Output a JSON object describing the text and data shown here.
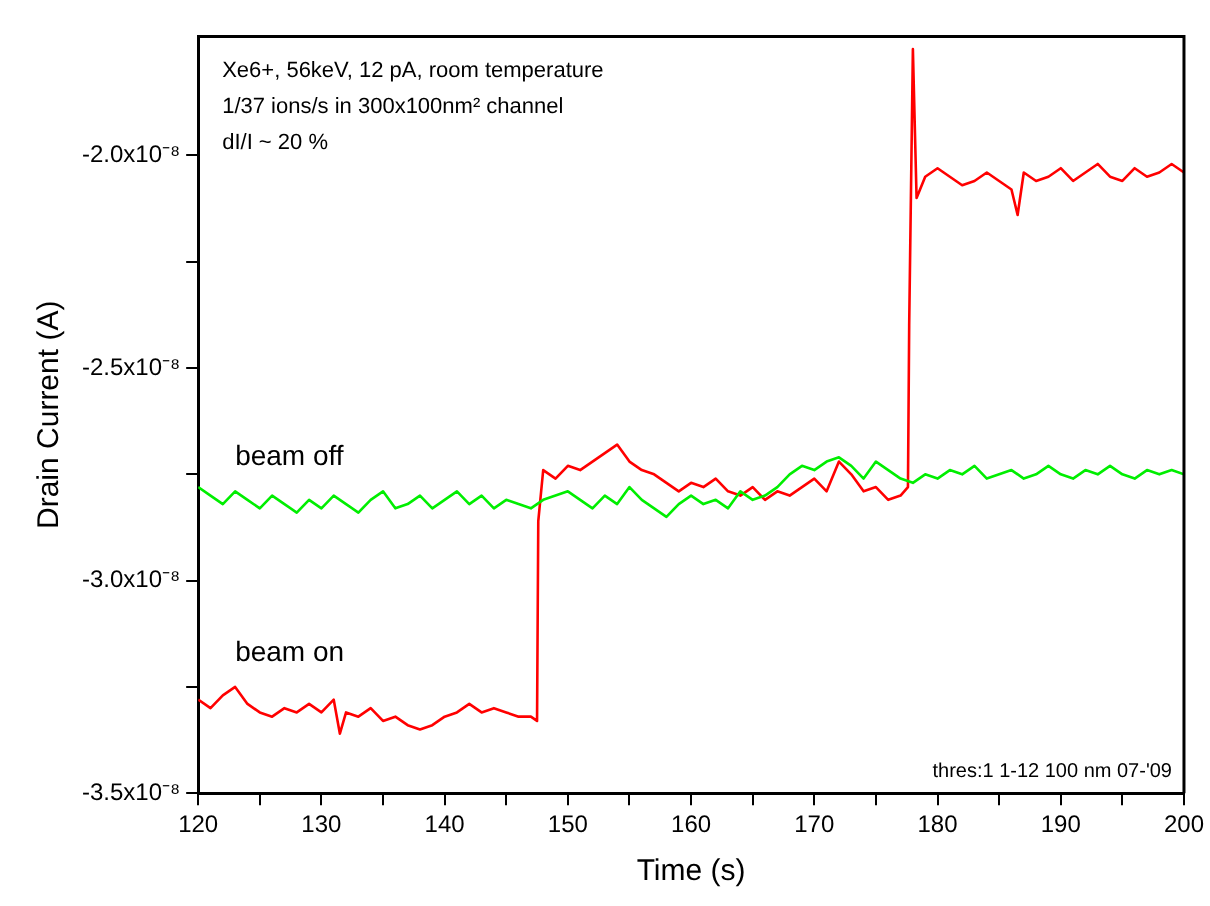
{
  "chart_data": {
    "type": "line",
    "xlabel": "Time (s)",
    "ylabel": "Drain Current (A)",
    "xlim": [
      120,
      200
    ],
    "xticks": [
      120,
      {
        "value": 125,
        "label": null
      },
      130,
      {
        "value": 135,
        "label": null
      },
      140,
      {
        "value": 145,
        "label": null
      },
      150,
      {
        "value": 155,
        "label": null
      },
      160,
      {
        "value": 165,
        "label": null
      },
      170,
      {
        "value": 175,
        "label": null
      },
      180,
      {
        "value": 185,
        "label": null
      },
      190,
      {
        "value": 195,
        "label": null
      },
      200
    ],
    "ylim": [
      -3.5e-08,
      -1.72e-08
    ],
    "yticks": [
      {
        "value": -3.5e-08,
        "label": "-3.5x10⁻⁸"
      },
      {
        "value": -3.25e-08,
        "label": null
      },
      {
        "value": -3e-08,
        "label": "-3.0x10⁻⁸"
      },
      {
        "value": -2.75e-08,
        "label": null
      },
      {
        "value": -2.5e-08,
        "label": "-2.5x10⁻⁸"
      },
      {
        "value": -2.25e-08,
        "label": null
      },
      {
        "value": -2e-08,
        "label": "-2.0x10⁻⁸"
      }
    ],
    "grid": false,
    "legend": false,
    "marker": "none",
    "line_style": "solid",
    "annotations": [
      "Xe6+, 56keV, 12 pA, room temperature",
      "1/37 ions/s in 300x100nm² channel",
      "dI/I ~ 20 %",
      "thres:1 1-12 100 nm 07-'09"
    ],
    "series": [
      {
        "name": "beam off",
        "color": "#00ee00",
        "x": [
          120,
          121,
          122,
          123,
          124,
          125,
          126,
          127,
          128,
          129,
          130,
          131,
          132,
          133,
          134,
          135,
          136,
          137,
          138,
          139,
          140,
          141,
          142,
          143,
          144,
          145,
          146,
          147,
          148,
          149,
          150,
          151,
          152,
          153,
          154,
          155,
          156,
          157,
          158,
          159,
          160,
          161,
          162,
          163,
          164,
          165,
          166,
          167,
          168,
          169,
          170,
          171,
          172,
          173,
          174,
          175,
          176,
          177,
          178,
          179,
          180,
          181,
          182,
          183,
          184,
          185,
          186,
          187,
          188,
          189,
          190,
          191,
          192,
          193,
          194,
          195,
          196,
          197,
          198,
          199,
          200
        ],
        "values": [
          -2.78e-08,
          -2.8e-08,
          -2.82e-08,
          -2.79e-08,
          -2.81e-08,
          -2.83e-08,
          -2.8e-08,
          -2.82e-08,
          -2.84e-08,
          -2.81e-08,
          -2.83e-08,
          -2.8e-08,
          -2.82e-08,
          -2.84e-08,
          -2.81e-08,
          -2.79e-08,
          -2.83e-08,
          -2.82e-08,
          -2.8e-08,
          -2.83e-08,
          -2.81e-08,
          -2.79e-08,
          -2.82e-08,
          -2.8e-08,
          -2.83e-08,
          -2.81e-08,
          -2.82e-08,
          -2.83e-08,
          -2.81e-08,
          -2.8e-08,
          -2.79e-08,
          -2.81e-08,
          -2.83e-08,
          -2.8e-08,
          -2.82e-08,
          -2.78e-08,
          -2.81e-08,
          -2.83e-08,
          -2.85e-08,
          -2.82e-08,
          -2.8e-08,
          -2.82e-08,
          -2.81e-08,
          -2.83e-08,
          -2.79e-08,
          -2.81e-08,
          -2.8e-08,
          -2.78e-08,
          -2.75e-08,
          -2.73e-08,
          -2.74e-08,
          -2.72e-08,
          -2.71e-08,
          -2.73e-08,
          -2.76e-08,
          -2.72e-08,
          -2.74e-08,
          -2.76e-08,
          -2.77e-08,
          -2.75e-08,
          -2.76e-08,
          -2.74e-08,
          -2.75e-08,
          -2.73e-08,
          -2.76e-08,
          -2.75e-08,
          -2.74e-08,
          -2.76e-08,
          -2.75e-08,
          -2.73e-08,
          -2.75e-08,
          -2.76e-08,
          -2.74e-08,
          -2.75e-08,
          -2.73e-08,
          -2.75e-08,
          -2.76e-08,
          -2.74e-08,
          -2.75e-08,
          -2.74e-08,
          -2.75e-08
        ]
      },
      {
        "name": "beam on",
        "color": "#ff0000",
        "x": [
          120,
          121,
          122,
          123,
          124,
          125,
          126,
          127,
          128,
          129,
          130,
          131,
          131.5,
          132,
          133,
          134,
          135,
          136,
          137,
          138,
          139,
          140,
          141,
          142,
          143,
          144,
          145,
          146,
          147,
          147.5,
          147.6,
          148,
          149,
          150,
          151,
          152,
          153,
          154,
          155,
          156,
          157,
          158,
          159,
          160,
          161,
          162,
          163,
          164,
          165,
          166,
          167,
          168,
          169,
          170,
          171,
          172,
          173,
          174,
          175,
          176,
          177,
          177.6,
          177.7,
          178,
          178.3,
          179,
          180,
          181,
          182,
          183,
          184,
          185,
          186,
          186.5,
          187,
          188,
          189,
          190,
          191,
          192,
          193,
          194,
          195,
          196,
          197,
          198,
          199,
          200
        ],
        "values": [
          -3.28e-08,
          -3.3e-08,
          -3.27e-08,
          -3.25e-08,
          -3.29e-08,
          -3.31e-08,
          -3.32e-08,
          -3.3e-08,
          -3.31e-08,
          -3.29e-08,
          -3.31e-08,
          -3.28e-08,
          -3.36e-08,
          -3.31e-08,
          -3.32e-08,
          -3.3e-08,
          -3.33e-08,
          -3.32e-08,
          -3.34e-08,
          -3.35e-08,
          -3.34e-08,
          -3.32e-08,
          -3.31e-08,
          -3.29e-08,
          -3.31e-08,
          -3.3e-08,
          -3.31e-08,
          -3.32e-08,
          -3.32e-08,
          -3.33e-08,
          -2.86e-08,
          -2.74e-08,
          -2.76e-08,
          -2.73e-08,
          -2.74e-08,
          -2.72e-08,
          -2.7e-08,
          -2.68e-08,
          -2.72e-08,
          -2.74e-08,
          -2.75e-08,
          -2.77e-08,
          -2.79e-08,
          -2.77e-08,
          -2.78e-08,
          -2.76e-08,
          -2.79e-08,
          -2.8e-08,
          -2.78e-08,
          -2.81e-08,
          -2.79e-08,
          -2.8e-08,
          -2.78e-08,
          -2.76e-08,
          -2.79e-08,
          -2.72e-08,
          -2.75e-08,
          -2.79e-08,
          -2.78e-08,
          -2.81e-08,
          -2.8e-08,
          -2.78e-08,
          -2.4e-08,
          -1.75e-08,
          -2.1e-08,
          -2.05e-08,
          -2.03e-08,
          -2.05e-08,
          -2.07e-08,
          -2.06e-08,
          -2.04e-08,
          -2.06e-08,
          -2.08e-08,
          -2.14e-08,
          -2.04e-08,
          -2.06e-08,
          -2.05e-08,
          -2.03e-08,
          -2.06e-08,
          -2.04e-08,
          -2.02e-08,
          -2.05e-08,
          -2.06e-08,
          -2.03e-08,
          -2.05e-08,
          -2.04e-08,
          -2.02e-08,
          -2.04e-08
        ]
      }
    ]
  }
}
